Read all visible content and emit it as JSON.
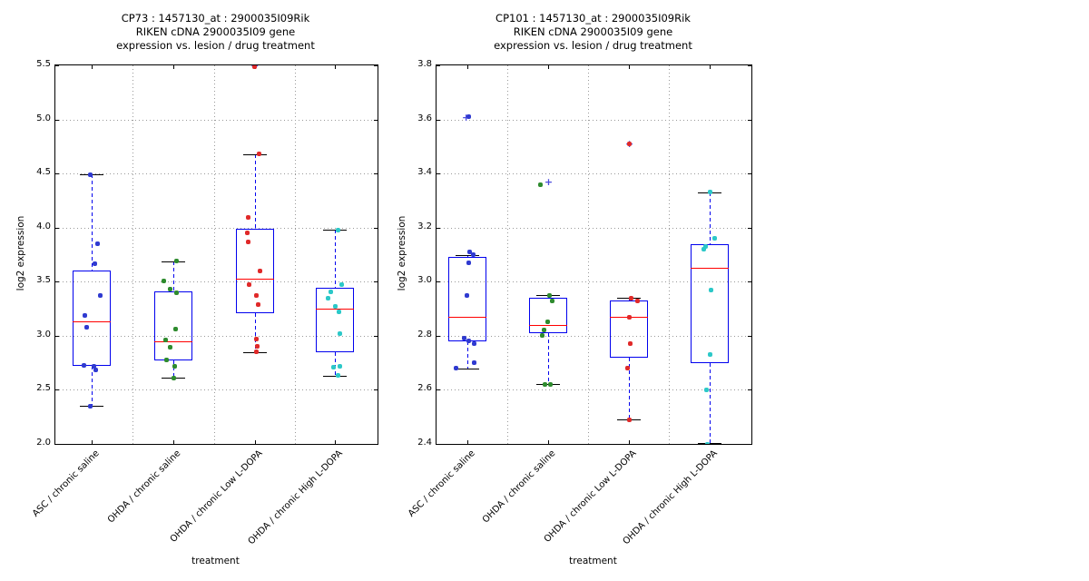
{
  "figure": {
    "background": "#ffffff",
    "text_color": "#000000"
  },
  "chart_data": [
    {
      "type": "boxplot",
      "title_lines": [
        "CP73 : 1457130_at : 2900035I09Rik",
        "RIKEN cDNA 2900035I09 gene",
        "expression vs. lesion / drug treatment"
      ],
      "ylabel": "log2 expression",
      "xlabel": "treatment",
      "ylim": [
        2.0,
        5.5
      ],
      "yticks": [
        "2.0",
        "2.5",
        "3.0",
        "3.5",
        "4.0",
        "4.5",
        "5.0",
        "5.5"
      ],
      "grid": "dotted",
      "categories": [
        "ASC / chronic saline",
        "OHDA / chronic saline",
        "OHDA / chronic Low L-DOPA",
        "OHDA / chronic High L-DOPA"
      ],
      "style": {
        "box": "#0000ee",
        "median": "#ff0000",
        "whisker": "#0000ee",
        "cap": "#000000",
        "grid": "#999999",
        "flier": "#4d4ddd"
      },
      "groups": [
        {
          "category": "ASC / chronic saline",
          "point_color": "#2f3ad0",
          "box": {
            "whisker_low": 2.35,
            "q1": 2.72,
            "median": 3.13,
            "q3": 3.6,
            "whisker_high": 4.49
          },
          "fliers": [],
          "points": [
            [
              4.49,
              -2
            ],
            [
              3.85,
              6
            ],
            [
              3.67,
              3
            ],
            [
              3.37,
              9
            ],
            [
              3.19,
              -8
            ],
            [
              3.08,
              -6
            ],
            [
              2.73,
              -9
            ],
            [
              2.72,
              2
            ],
            [
              2.68,
              4
            ],
            [
              2.35,
              -2
            ]
          ]
        },
        {
          "category": "OHDA / chronic saline",
          "point_color": "#2e8b2e",
          "box": {
            "whisker_low": 2.61,
            "q1": 2.77,
            "median": 2.95,
            "q3": 3.41,
            "whisker_high": 3.69
          },
          "fliers": [],
          "points": [
            [
              3.69,
              4
            ],
            [
              3.51,
              -10
            ],
            [
              3.43,
              -3
            ],
            [
              3.4,
              4
            ],
            [
              3.06,
              3
            ],
            [
              2.96,
              -8
            ],
            [
              2.89,
              -3
            ],
            [
              2.78,
              -7
            ],
            [
              2.72,
              2
            ],
            [
              2.61,
              1
            ]
          ]
        },
        {
          "category": "OHDA / chronic Low L-DOPA",
          "point_color": "#e02929",
          "box": {
            "whisker_low": 2.85,
            "q1": 3.21,
            "median": 3.53,
            "q3": 3.99,
            "whisker_high": 4.68
          },
          "fliers": [
            [
              5.5,
              -1
            ]
          ],
          "points": [
            [
              5.49,
              -1
            ],
            [
              4.68,
              4
            ],
            [
              4.09,
              -8
            ],
            [
              3.95,
              -9
            ],
            [
              3.87,
              -8
            ],
            [
              3.6,
              5
            ],
            [
              3.47,
              -7
            ],
            [
              3.37,
              1
            ],
            [
              3.29,
              3
            ],
            [
              2.97,
              1
            ],
            [
              2.9,
              2
            ],
            [
              2.85,
              1
            ]
          ]
        },
        {
          "category": "OHDA / chronic High L-DOPA",
          "point_color": "#2cc8c8",
          "box": {
            "whisker_low": 2.63,
            "q1": 2.85,
            "median": 3.25,
            "q3": 3.44,
            "whisker_high": 3.98
          },
          "fliers": [],
          "points": [
            [
              3.98,
              3
            ],
            [
              3.47,
              7
            ],
            [
              3.41,
              -5
            ],
            [
              3.35,
              -8
            ],
            [
              3.27,
              0
            ],
            [
              3.22,
              4
            ],
            [
              3.02,
              5
            ],
            [
              2.72,
              5
            ],
            [
              2.71,
              -2
            ],
            [
              2.63,
              3
            ]
          ]
        }
      ]
    },
    {
      "type": "boxplot",
      "title_lines": [
        "CP101 : 1457130_at : 2900035I09Rik",
        "RIKEN cDNA 2900035I09 gene",
        "expression vs. lesion / drug treatment"
      ],
      "ylabel": "log2 expression",
      "xlabel": "treatment",
      "ylim": [
        2.4,
        3.8
      ],
      "yticks": [
        "2.4",
        "2.6",
        "2.8",
        "3.0",
        "3.2",
        "3.4",
        "3.6",
        "3.8"
      ],
      "grid": "dotted",
      "categories": [
        "ASC / chronic saline",
        "OHDA / chronic saline",
        "OHDA / chronic Low L-DOPA",
        "OHDA / chronic High L-DOPA"
      ],
      "style": {
        "box": "#0000ee",
        "median": "#ff0000",
        "whisker": "#0000ee",
        "cap": "#000000",
        "grid": "#999999",
        "flier": "#4d4ddd"
      },
      "groups": [
        {
          "category": "ASC / chronic saline",
          "point_color": "#2f3ad0",
          "box": {
            "whisker_low": 2.68,
            "q1": 2.78,
            "median": 2.87,
            "q3": 3.09,
            "whisker_high": 3.1
          },
          "fliers": [
            [
              3.61,
              -2
            ]
          ],
          "points": [
            [
              3.61,
              1
            ],
            [
              3.11,
              2
            ],
            [
              3.1,
              6
            ],
            [
              3.07,
              1
            ],
            [
              2.95,
              -1
            ],
            [
              2.79,
              -4
            ],
            [
              2.78,
              1
            ],
            [
              2.77,
              7
            ],
            [
              2.7,
              7
            ],
            [
              2.68,
              -13
            ]
          ]
        },
        {
          "category": "OHDA / chronic saline",
          "point_color": "#2e8b2e",
          "box": {
            "whisker_low": 2.62,
            "q1": 2.81,
            "median": 2.84,
            "q3": 2.94,
            "whisker_high": 2.95
          },
          "fliers": [
            [
              3.37,
              0
            ]
          ],
          "points": [
            [
              3.36,
              -8
            ],
            [
              2.95,
              2
            ],
            [
              2.93,
              5
            ],
            [
              2.85,
              0
            ],
            [
              2.82,
              -4
            ],
            [
              2.8,
              -6
            ],
            [
              2.62,
              -3
            ],
            [
              2.62,
              3
            ]
          ]
        },
        {
          "category": "OHDA / chronic Low L-DOPA",
          "point_color": "#e02929",
          "box": {
            "whisker_low": 2.49,
            "q1": 2.72,
            "median": 2.87,
            "q3": 2.93,
            "whisker_high": 2.94
          },
          "fliers": [
            [
              3.51,
              0
            ]
          ],
          "points": [
            [
              3.51,
              0
            ],
            [
              2.94,
              2
            ],
            [
              2.93,
              9
            ],
            [
              2.87,
              0
            ],
            [
              2.77,
              1
            ],
            [
              2.68,
              -2
            ],
            [
              2.49,
              0
            ]
          ]
        },
        {
          "category": "OHDA / chronic High L-DOPA",
          "point_color": "#2cc8c8",
          "box": {
            "whisker_low": 2.4,
            "q1": 2.7,
            "median": 3.05,
            "q3": 3.14,
            "whisker_high": 3.33
          },
          "fliers": [],
          "points": [
            [
              3.33,
              1
            ],
            [
              3.16,
              6
            ],
            [
              3.13,
              -4
            ],
            [
              3.12,
              -6
            ],
            [
              2.97,
              2
            ],
            [
              2.73,
              1
            ],
            [
              2.6,
              -3
            ],
            [
              2.4,
              -2
            ]
          ]
        }
      ]
    }
  ]
}
